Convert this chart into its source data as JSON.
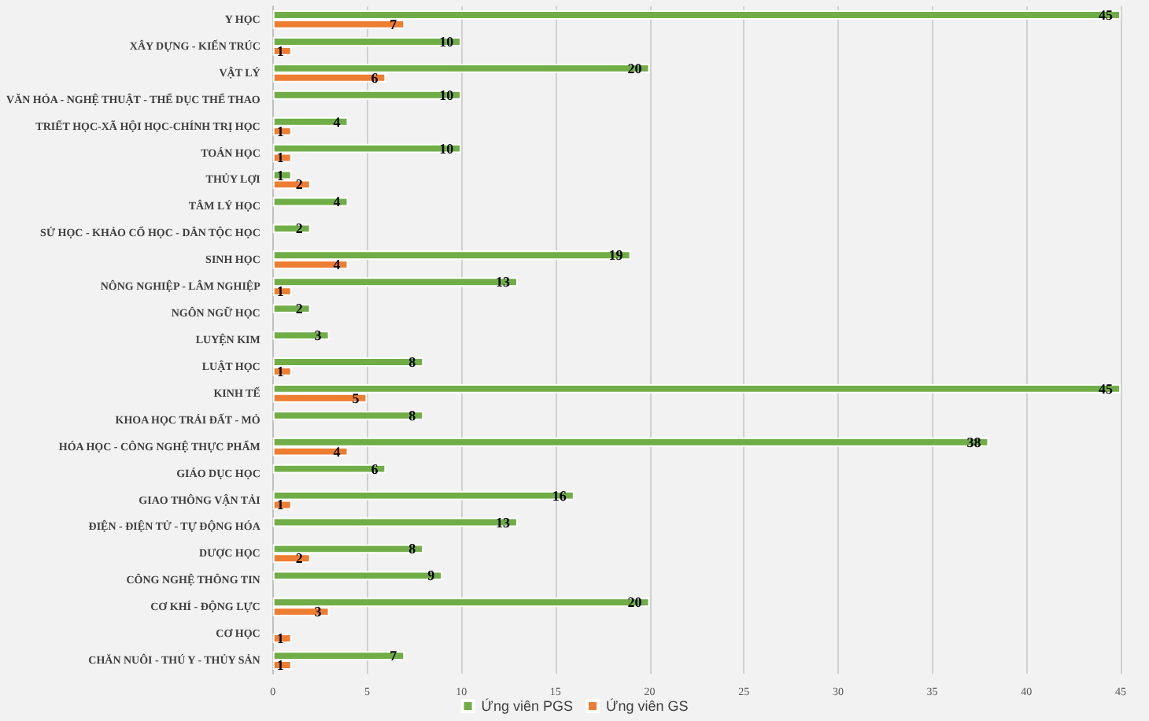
{
  "chart_data": {
    "type": "bar",
    "orientation": "horizontal",
    "categories": [
      "Y HỌC",
      "XÂY DỰNG - KIẾN TRÚC",
      "VẬT LÝ",
      "VĂN HÓA - NGHỆ THUẬT - THỂ DỤC THỂ THAO",
      "TRIẾT HỌC-XÃ HỘI HỌC-CHÍNH TRỊ HỌC",
      "TOÁN HỌC",
      "THỦY LỢI",
      "TÂM LÝ HỌC",
      "SỬ HỌC - KHẢO CỔ HỌC - DÂN TỘC HỌC",
      "SINH HỌC",
      "NÔNG NGHIỆP - LÂM NGHIỆP",
      "NGÔN NGỮ HỌC",
      "LUYỆN KIM",
      "LUẬT HỌC",
      "KINH TẾ",
      "KHOA HỌC TRÁI ĐẤT - MỎ",
      "HÓA HỌC - CÔNG NGHỆ THỰC PHẨM",
      "GIÁO DỤC HỌC",
      "GIAO THÔNG VẬN TẢI",
      "ĐIỆN - ĐIỆN TỬ - TỰ ĐỘNG HÓA",
      "DƯỢC HỌC",
      "CÔNG NGHỆ THÔNG TIN",
      "CƠ KHÍ - ĐỘNG LỰC",
      "CƠ HỌC",
      "CHĂN NUÔI - THÚ Y - THỦY SẢN"
    ],
    "series": [
      {
        "name": "Ứng viên PGS",
        "color": "#70ad47",
        "values": [
          45,
          10,
          20,
          10,
          4,
          10,
          1,
          4,
          2,
          19,
          13,
          2,
          3,
          8,
          45,
          8,
          38,
          6,
          16,
          13,
          8,
          9,
          20,
          null,
          7
        ]
      },
      {
        "name": "Ứng viên GS",
        "color": "#ed7d31",
        "values": [
          7,
          1,
          6,
          null,
          1,
          1,
          2,
          null,
          null,
          4,
          1,
          null,
          null,
          1,
          5,
          null,
          4,
          null,
          1,
          null,
          2,
          null,
          3,
          1,
          1
        ]
      }
    ],
    "xlim": [
      0,
      45
    ],
    "xticks": [
      0,
      5,
      10,
      15,
      20,
      25,
      30,
      35,
      40,
      45
    ],
    "grid": "x",
    "legend": "bottom",
    "data_labels": true
  }
}
